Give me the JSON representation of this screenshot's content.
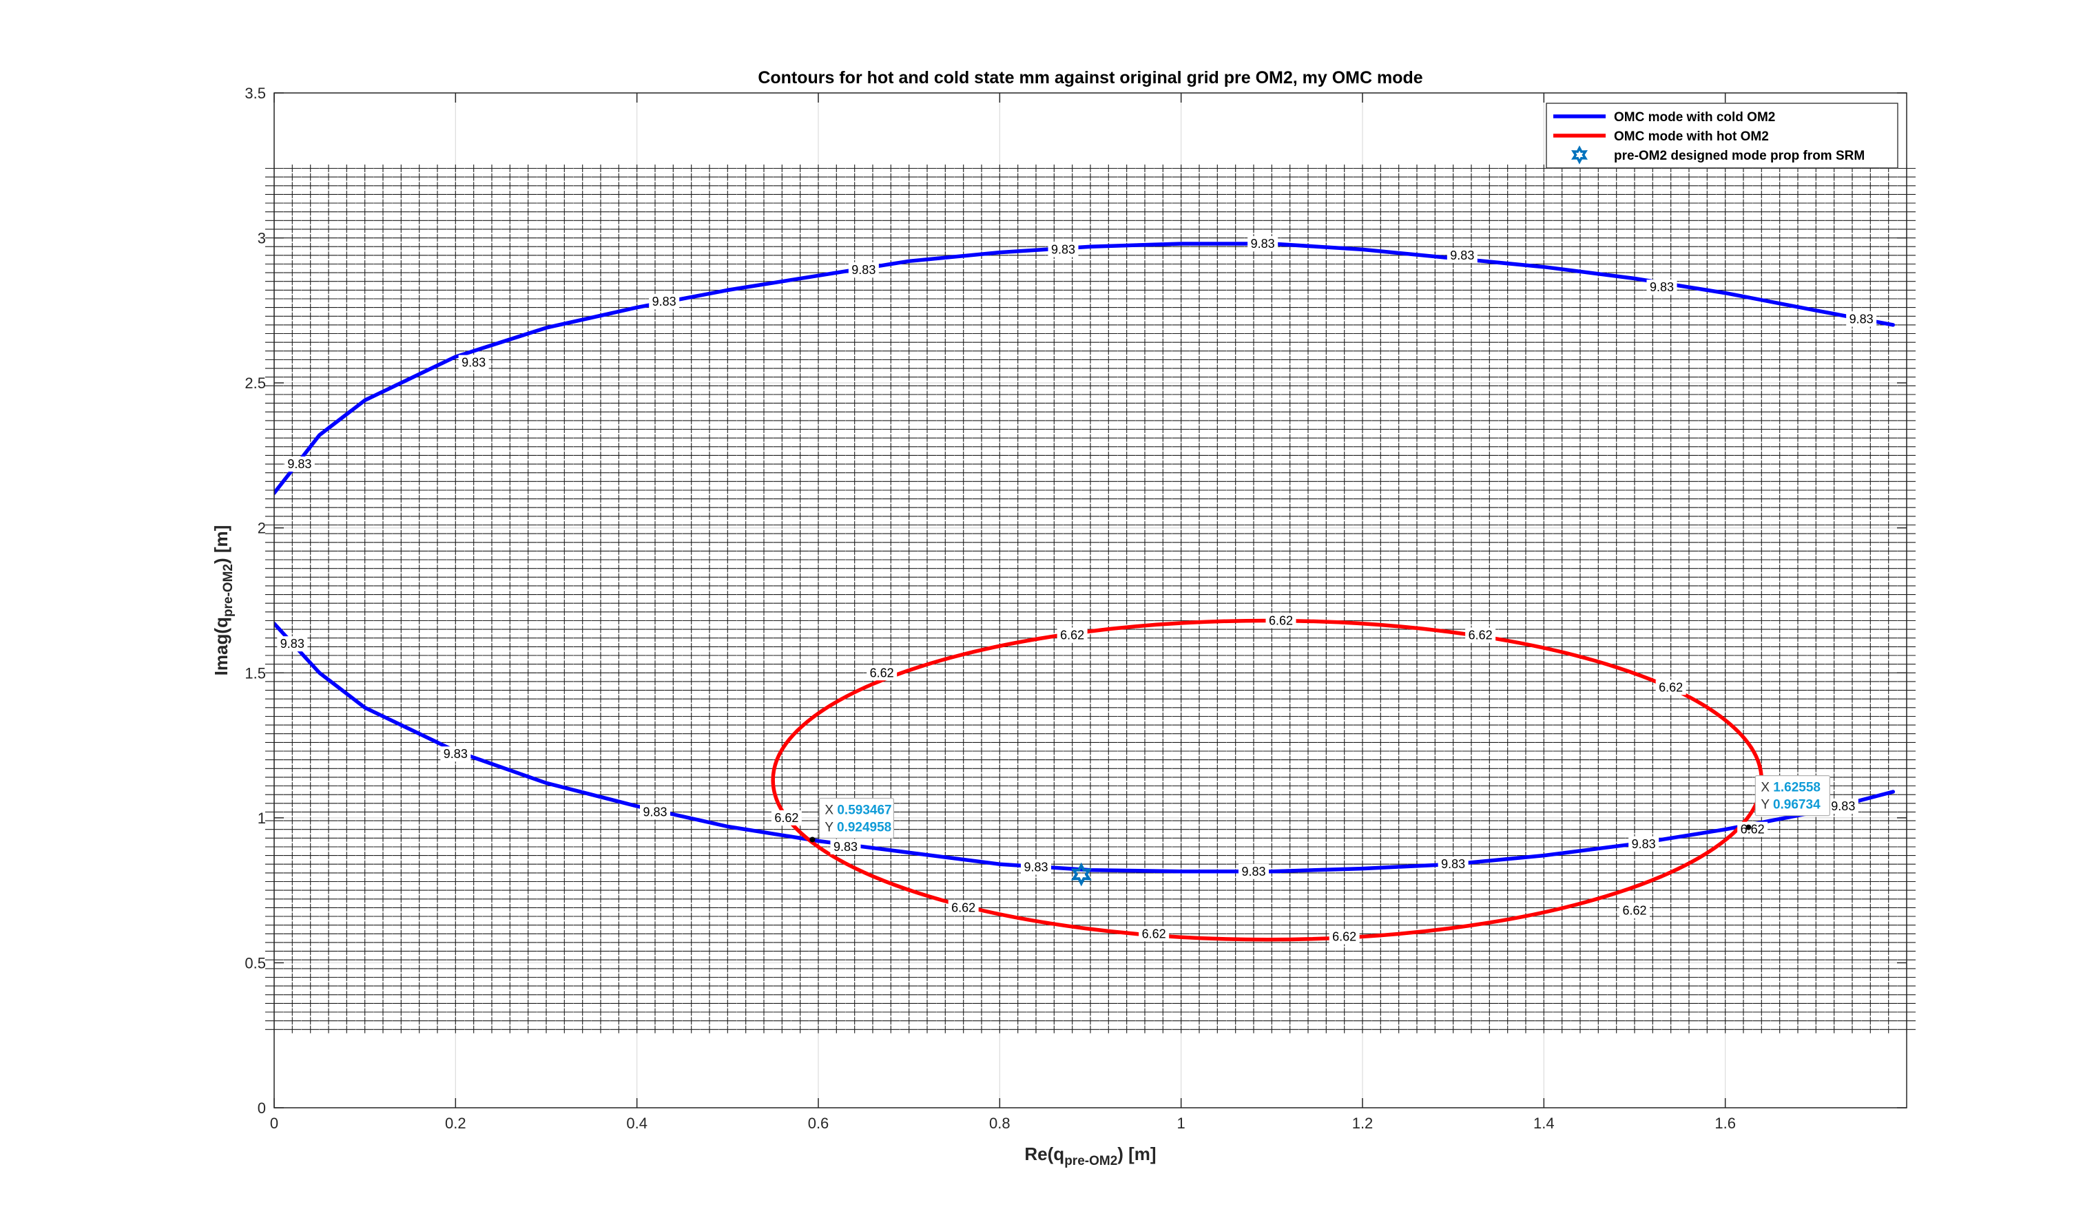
{
  "chart_data": {
    "type": "line",
    "title": "Contours for hot and cold state mm against original grid pre OM2, my OMC mode",
    "xlabel_main": "Re(q",
    "xlabel_sub": "pre-OM2",
    "xlabel_end": ") [m]",
    "ylabel_main": "Imag(q",
    "ylabel_sub": "pre-OM2",
    "ylabel_end": ") [m]",
    "xlim": [
      0,
      1.8
    ],
    "ylim": [
      0,
      3.5
    ],
    "xticks": [
      "0",
      "0.2",
      "0.4",
      "0.6",
      "0.8",
      "1",
      "1.2",
      "1.4",
      "1.6"
    ],
    "yticks": [
      "0",
      "0.5",
      "1",
      "1.5",
      "2",
      "2.5",
      "3",
      "3.5"
    ],
    "grid": true,
    "legend_position": "top-right",
    "background_grid": {
      "x_range": [
        0,
        1.8
      ],
      "y_range": [
        0.27,
        3.24
      ],
      "x_step": 0.02,
      "y_step": 0.03
    },
    "series": [
      {
        "name": "OMC mode with cold OM2",
        "color": "#0000ff",
        "contour_level": "9.83",
        "x": [
          0,
          0.05,
          0.1,
          0.2,
          0.3,
          0.4,
          0.5,
          0.6,
          0.7,
          0.8,
          0.9,
          1.0,
          1.1,
          1.2,
          1.3,
          1.4,
          1.5,
          1.6,
          1.7,
          1.785
        ],
        "y_upper": [
          2.12,
          2.32,
          2.44,
          2.59,
          2.69,
          2.76,
          2.82,
          2.87,
          2.92,
          2.95,
          2.97,
          2.98,
          2.98,
          2.96,
          2.93,
          2.9,
          2.86,
          2.81,
          2.75,
          2.7
        ],
        "y_lower": [
          1.67,
          1.5,
          1.38,
          1.23,
          1.12,
          1.04,
          0.97,
          0.92,
          0.88,
          0.84,
          0.82,
          0.815,
          0.815,
          0.825,
          0.84,
          0.87,
          0.91,
          0.96,
          1.02,
          1.09
        ],
        "labels": [
          {
            "x": 0.028,
            "y": 2.22
          },
          {
            "x": 0.22,
            "y": 2.57
          },
          {
            "x": 0.43,
            "y": 2.78
          },
          {
            "x": 0.65,
            "y": 2.89
          },
          {
            "x": 0.87,
            "y": 2.96
          },
          {
            "x": 1.09,
            "y": 2.98
          },
          {
            "x": 1.31,
            "y": 2.94
          },
          {
            "x": 1.53,
            "y": 2.83
          },
          {
            "x": 1.75,
            "y": 2.72
          },
          {
            "x": 0.02,
            "y": 1.6
          },
          {
            "x": 0.2,
            "y": 1.22
          },
          {
            "x": 0.42,
            "y": 1.02
          },
          {
            "x": 0.63,
            "y": 0.9
          },
          {
            "x": 0.84,
            "y": 0.83
          },
          {
            "x": 1.08,
            "y": 0.815
          },
          {
            "x": 1.3,
            "y": 0.84
          },
          {
            "x": 1.51,
            "y": 0.91
          },
          {
            "x": 1.73,
            "y": 1.04
          }
        ]
      },
      {
        "name": "OMC mode with hot OM2",
        "color": "#ff0000",
        "contour_level": "6.62",
        "center": [
          1.095,
          1.13
        ],
        "semi_axes": [
          0.545,
          0.55
        ],
        "labels": [
          {
            "x": 0.565,
            "y": 1.0
          },
          {
            "x": 0.67,
            "y": 1.5
          },
          {
            "x": 0.88,
            "y": 1.63
          },
          {
            "x": 1.11,
            "y": 1.68
          },
          {
            "x": 1.33,
            "y": 1.63
          },
          {
            "x": 1.54,
            "y": 1.45
          },
          {
            "x": 1.63,
            "y": 0.96
          },
          {
            "x": 1.5,
            "y": 0.68
          },
          {
            "x": 1.18,
            "y": 0.59
          },
          {
            "x": 0.97,
            "y": 0.6
          },
          {
            "x": 0.76,
            "y": 0.69
          }
        ]
      },
      {
        "name": "pre-OM2 designed mode prop from SRM",
        "color": "#0072bd",
        "marker": "hexagram",
        "x": [
          0.89
        ],
        "y": [
          0.805
        ]
      }
    ],
    "datatips": [
      {
        "x_label": "X",
        "x_value": "0.593467",
        "y_label": "Y",
        "y_value": "0.924958",
        "x": 0.593467,
        "y": 0.924958
      },
      {
        "x_label": "X",
        "x_value": "1.62558",
        "y_label": "Y",
        "y_value": "0.96734",
        "x": 1.62558,
        "y": 0.96734
      }
    ]
  }
}
